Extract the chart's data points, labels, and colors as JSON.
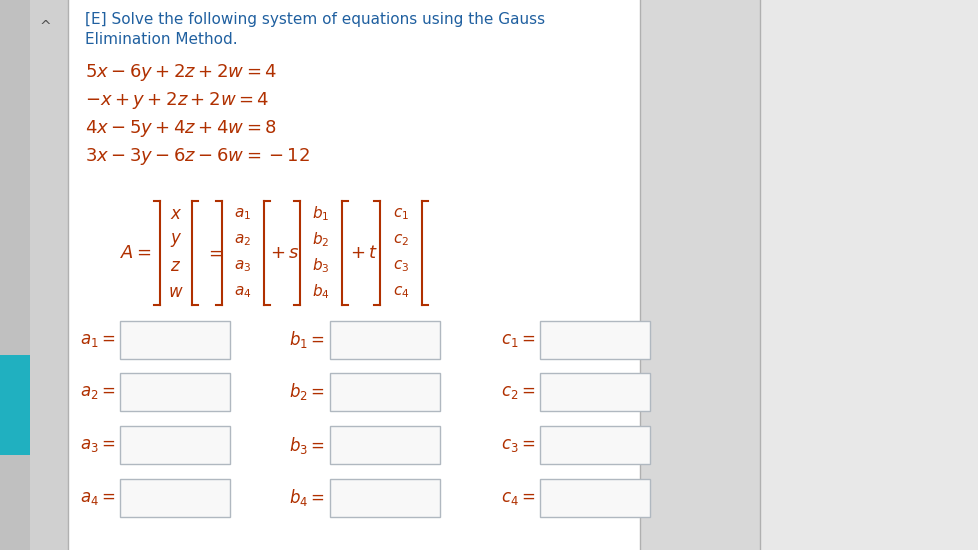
{
  "bg_color": "#e0e0e0",
  "left_bar_color": "#c8c8c8",
  "panel_color": "#ffffff",
  "right_panel_color": "#d8d8d8",
  "title_color": "#2060a0",
  "eq_color": "#b03000",
  "matrix_color": "#b03000",
  "label_color": "#b03000",
  "box_face_color": "#f8f8f8",
  "box_edge_color": "#b0b8c0",
  "title1": "[E] Solve the following system of equations using the Gauss",
  "title2": "Elimination Method.",
  "eq1": "$5x - 6y + 2z + 2w = 4$",
  "eq2": "$-x + y + 2z + 2w = 4$",
  "eq3": "$4x - 5y + 4z + 4w = 8$",
  "eq4": "$3x - 3y - 6z - 6w = -12$"
}
